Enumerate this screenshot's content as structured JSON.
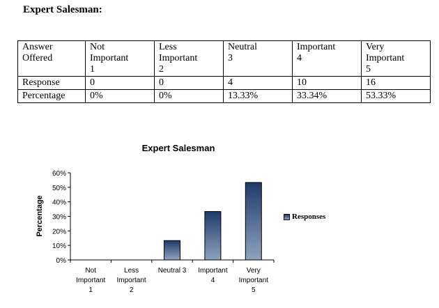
{
  "heading": "Expert Salesman:",
  "table": {
    "header": [
      "Answer Offered",
      "Not Important 1",
      "Less Important 2",
      "Neutral 3",
      "Important 4",
      "Very Important 5"
    ],
    "header_lines": [
      [
        "Answer",
        "Offered"
      ],
      [
        "Not",
        "Important",
        "1"
      ],
      [
        "Less",
        "Important",
        "2"
      ],
      [
        "Neutral",
        "3"
      ],
      [
        "Important",
        "4"
      ],
      [
        "Very",
        "Important",
        "5"
      ]
    ],
    "rows": [
      [
        "Response",
        "0",
        "0",
        "4",
        "10",
        "16"
      ],
      [
        "Percentage",
        "0%",
        "0%",
        "13.33%",
        "33.34%",
        "53.33%"
      ]
    ]
  },
  "chart_data": {
    "type": "bar",
    "title": "Expert Salesman",
    "ylabel": "Percentage",
    "xlabel": "",
    "categories": [
      [
        "Not",
        "Important",
        "1"
      ],
      [
        "Less",
        "Important",
        "2"
      ],
      [
        "Neutral 3"
      ],
      [
        "Important",
        "4"
      ],
      [
        "Very",
        "Important",
        "5"
      ]
    ],
    "series": [
      {
        "name": "Responses",
        "values": [
          0,
          0,
          13.33,
          33.34,
          53.33
        ]
      }
    ],
    "ylim": [
      0,
      60
    ],
    "yticks": [
      "0%",
      "10%",
      "20%",
      "30%",
      "40%",
      "50%",
      "60%"
    ],
    "grid": false,
    "legend": "right",
    "colors": {
      "bar_top": "#1f3a6b",
      "bar_bottom": "#8fa3bd"
    }
  }
}
